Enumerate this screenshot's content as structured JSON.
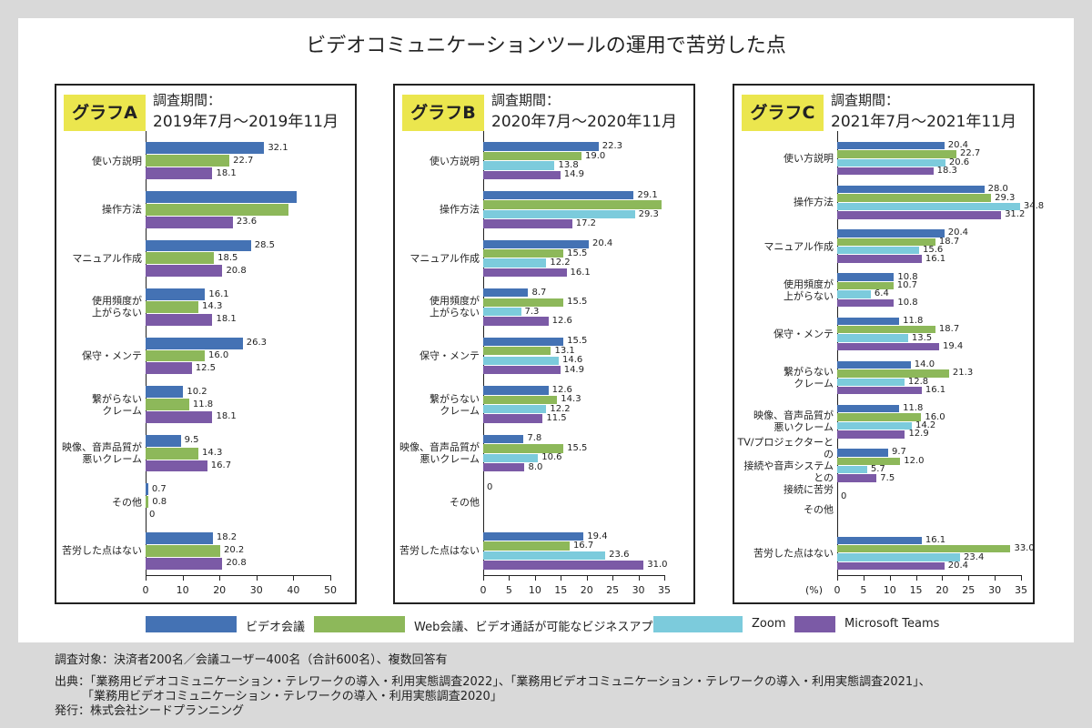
{
  "title": "ビデオコミュニケーションツールの運用で苦労した点",
  "chart_data": [
    {
      "type": "bar",
      "badge": "グラフA",
      "period_label": "調査期間：",
      "period": "2019年7月～2019年11月",
      "categories": [
        "使い方説明",
        "操作方法",
        "マニュアル作成",
        "使用頻度が\n上がらない",
        "保守・メンテ",
        "繋がらない\nクレーム",
        "映像、音声品質が\n悪いクレーム",
        "その他",
        "苦労した点はない"
      ],
      "series": [
        {
          "name": "ビデオ会議",
          "color": "#4472b4",
          "values": [
            32.1,
            40.9,
            28.5,
            16.1,
            26.3,
            10.2,
            9.5,
            0.7,
            18.2
          ],
          "value_labels": [
            "32.1",
            null,
            "28.5",
            "16.1",
            "26.3",
            "10.2",
            "9.5",
            "0.7",
            "18.2"
          ]
        },
        {
          "name": "Web会議、ビデオ通話が可能なビジネスアプリ",
          "color": "#8db85a",
          "values": [
            22.7,
            38.7,
            18.5,
            14.3,
            16.0,
            11.8,
            14.3,
            0.8,
            20.2
          ],
          "value_labels": [
            "22.7",
            null,
            "18.5",
            "14.3",
            "16.0",
            "11.8",
            "14.3",
            "0.8",
            "20.2"
          ]
        },
        {
          "name": "Microsoft Teams",
          "color": "#7b5aa6",
          "values": [
            18.1,
            23.6,
            20.8,
            18.1,
            12.5,
            18.1,
            16.7,
            0,
            20.8
          ],
          "value_labels": [
            "18.1",
            "23.6",
            "20.8",
            "18.1",
            "12.5",
            "18.1",
            "16.7",
            "0",
            "20.8"
          ]
        }
      ],
      "xlim": [
        0,
        50
      ],
      "xticks": [
        0,
        10,
        20,
        30,
        40,
        50
      ]
    },
    {
      "type": "bar",
      "badge": "グラフB",
      "period_label": "調査期間：",
      "period": "2020年7月～2020年11月",
      "categories": [
        "使い方説明",
        "操作方法",
        "マニュアル作成",
        "使用頻度が\n上がらない",
        "保守・メンテ",
        "繋がらない\nクレーム",
        "映像、音声品質が\n悪いクレーム",
        "その他",
        "苦労した点はない"
      ],
      "series": [
        {
          "name": "ビデオ会議",
          "color": "#4472b4",
          "values": [
            22.3,
            29.1,
            20.4,
            8.7,
            15.5,
            12.6,
            7.8,
            0,
            19.4
          ],
          "value_labels": [
            "22.3",
            "29.1",
            "20.4",
            "8.7",
            "15.5",
            "12.6",
            "7.8",
            "0",
            "19.4"
          ]
        },
        {
          "name": "Web会議、ビデオ通話が可能なビジネスアプリ",
          "color": "#8db85a",
          "values": [
            19.0,
            34.5,
            15.5,
            15.5,
            13.1,
            14.3,
            15.5,
            0,
            16.7
          ],
          "value_labels": [
            "19.0",
            null,
            "15.5",
            "15.5",
            "13.1",
            "14.3",
            "15.5",
            null,
            "16.7"
          ]
        },
        {
          "name": "Zoom",
          "color": "#7ccbdc",
          "values": [
            13.8,
            29.3,
            12.2,
            7.3,
            14.6,
            12.2,
            10.6,
            0,
            23.6
          ],
          "value_labels": [
            "13.8",
            "29.3",
            "12.2",
            "7.3",
            "14.6",
            "12.2",
            "10.6",
            null,
            "23.6"
          ]
        },
        {
          "name": "Microsoft Teams",
          "color": "#7b5aa6",
          "values": [
            14.9,
            17.2,
            16.1,
            12.6,
            14.9,
            11.5,
            8.0,
            0,
            31.0
          ],
          "value_labels": [
            "14.9",
            "17.2",
            "16.1",
            "12.6",
            "14.9",
            "11.5",
            "8.0",
            null,
            "31.0"
          ]
        }
      ],
      "xlim": [
        0,
        35
      ],
      "xticks": [
        0,
        5,
        10,
        15,
        20,
        25,
        30,
        35
      ]
    },
    {
      "type": "bar",
      "badge": "グラフC",
      "period_label": "調査期間：",
      "period": "2021年7月～2021年11月",
      "x_unit": "(%)",
      "categories": [
        "使い方説明",
        "操作方法",
        "マニュアル作成",
        "使用頻度が\n上がらない",
        "保守・メンテ",
        "繋がらない\nクレーム",
        "映像、音声品質が\n悪いクレーム",
        "TV/プロジェクターとの\n接続や音声システムとの\n接続に苦労",
        "その他",
        "苦労した点はない"
      ],
      "series": [
        {
          "name": "ビデオ会議",
          "color": "#4472b4",
          "values": [
            20.4,
            28.0,
            20.4,
            10.8,
            11.8,
            14.0,
            11.8,
            9.7,
            0,
            16.1
          ],
          "value_labels": [
            "20.4",
            "28.0",
            "20.4",
            "10.8",
            "11.8",
            "14.0",
            "11.8",
            "9.7",
            "0",
            "16.1"
          ]
        },
        {
          "name": "Web会議、ビデオ通話が可能なビジネスアプリ",
          "color": "#8db85a",
          "values": [
            22.7,
            29.3,
            18.7,
            10.7,
            18.7,
            21.3,
            16.0,
            12.0,
            0,
            33.0
          ],
          "value_labels": [
            "22.7",
            "29.3",
            "18.7",
            "10.7",
            "18.7",
            "21.3",
            "16.0",
            "12.0",
            null,
            "33.0"
          ]
        },
        {
          "name": "Zoom",
          "color": "#7ccbdc",
          "values": [
            20.6,
            34.8,
            15.6,
            6.4,
            13.5,
            12.8,
            14.2,
            5.7,
            0,
            23.4
          ],
          "value_labels": [
            "20.6",
            "34.8",
            "15.6",
            "6.4",
            "13.5",
            "12.8",
            "14.2",
            "5.7",
            null,
            "23.4"
          ]
        },
        {
          "name": "Microsoft Teams",
          "color": "#7b5aa6",
          "values": [
            18.3,
            31.2,
            16.1,
            10.8,
            19.4,
            16.1,
            12.9,
            7.5,
            0,
            20.4
          ],
          "value_labels": [
            "18.3",
            "31.2",
            "16.1",
            "10.8",
            "19.4",
            "16.1",
            "12.9",
            "7.5",
            null,
            "20.4"
          ]
        }
      ],
      "xlim": [
        0,
        35
      ],
      "xticks": [
        0,
        5,
        10,
        15,
        20,
        25,
        30,
        35
      ]
    }
  ],
  "legend": [
    {
      "name": "ビデオ会議",
      "color": "#4472b4"
    },
    {
      "name": "Web会議、ビデオ通話が可能なビジネスアプリ",
      "color": "#8db85a"
    },
    {
      "name": "Zoom",
      "color": "#7ccbdc"
    },
    {
      "name": "Microsoft Teams",
      "color": "#7b5aa6"
    }
  ],
  "footer": [
    "調査対象：決済者200名／会議ユーザー400名（合計600名）、複数回答有",
    "出典：「業務用ビデオコミュニケーション・テレワークの導入・利用実態調査2022」、「業務用ビデオコミュニケーション・テレワークの導入・利用実態調査2021」、",
    "「業務用ビデオコミュニケーション・テレワークの導入・利用実態調査2020」",
    "発行：株式会社シードプランニング"
  ]
}
